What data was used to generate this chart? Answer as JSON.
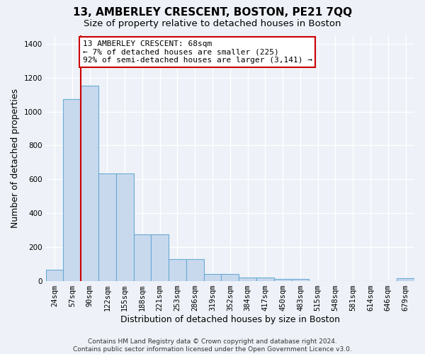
{
  "title": "13, AMBERLEY CRESCENT, BOSTON, PE21 7QQ",
  "subtitle": "Size of property relative to detached houses in Boston",
  "xlabel": "Distribution of detached houses by size in Boston",
  "ylabel": "Number of detached properties",
  "categories": [
    "24sqm",
    "57sqm",
    "90sqm",
    "122sqm",
    "155sqm",
    "188sqm",
    "221sqm",
    "253sqm",
    "286sqm",
    "319sqm",
    "352sqm",
    "384sqm",
    "417sqm",
    "450sqm",
    "483sqm",
    "515sqm",
    "548sqm",
    "581sqm",
    "614sqm",
    "646sqm",
    "679sqm"
  ],
  "values": [
    65,
    1075,
    1155,
    635,
    635,
    275,
    275,
    130,
    130,
    40,
    40,
    18,
    18,
    12,
    12,
    0,
    0,
    0,
    0,
    0,
    15
  ],
  "bar_color": "#c8d9ee",
  "bar_edge_color": "#6aaad4",
  "vline_color": "#cc0000",
  "vline_position": 1.5,
  "annotation_text": "13 AMBERLEY CRESCENT: 68sqm\n← 7% of detached houses are smaller (225)\n92% of semi-detached houses are larger (3,141) →",
  "annotation_box_color": "#ffffff",
  "annotation_box_edge_color": "#cc0000",
  "footer_text": "Contains HM Land Registry data © Crown copyright and database right 2024.\nContains public sector information licensed under the Open Government Licence v3.0.",
  "bg_color": "#eef2f8",
  "ylim": [
    0,
    1450
  ],
  "title_fontsize": 11,
  "subtitle_fontsize": 9.5,
  "ylabel_fontsize": 9,
  "xlabel_fontsize": 9,
  "tick_fontsize": 7.5,
  "annotation_fontsize": 8,
  "footer_fontsize": 6.5
}
